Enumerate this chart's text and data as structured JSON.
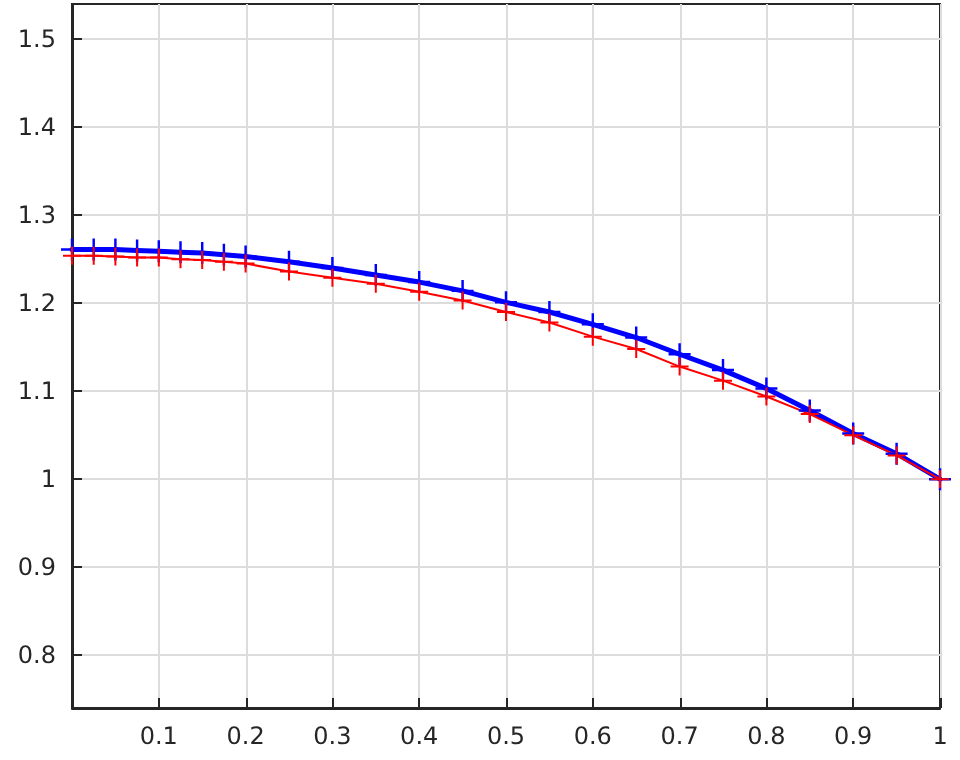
{
  "chart_data": {
    "type": "line",
    "x": [
      0,
      0.025,
      0.05,
      0.075,
      0.1,
      0.125,
      0.15,
      0.175,
      0.2,
      0.25,
      0.3,
      0.35,
      0.4,
      0.45,
      0.5,
      0.55,
      0.6,
      0.65,
      0.7,
      0.75,
      0.8,
      0.85,
      0.9,
      0.95,
      1
    ],
    "series": [
      {
        "color": "#0000ff",
        "values": [
          1.261,
          1.261,
          1.261,
          1.26,
          1.259,
          1.258,
          1.257,
          1.255,
          1.253,
          1.247,
          1.24,
          1.232,
          1.224,
          1.214,
          1.201,
          1.19,
          1.176,
          1.161,
          1.142,
          1.124,
          1.103,
          1.078,
          1.052,
          1.029,
          1.0
        ]
      },
      {
        "color": "#ff0000",
        "values": [
          1.254,
          1.254,
          1.253,
          1.252,
          1.252,
          1.25,
          1.249,
          1.247,
          1.245,
          1.236,
          1.229,
          1.222,
          1.213,
          1.203,
          1.19,
          1.178,
          1.162,
          1.148,
          1.128,
          1.112,
          1.094,
          1.074,
          1.05,
          1.027,
          1.0
        ]
      }
    ],
    "xlim": [
      0,
      1
    ],
    "xticks": [
      {
        "value": 0,
        "label": null
      },
      0.1,
      0.2,
      0.3,
      0.4,
      0.5,
      0.6,
      0.7,
      0.8,
      0.9,
      1
    ],
    "ylim": [
      0.74,
      1.54
    ],
    "yticks": [
      0.8,
      0.9,
      1,
      1.1,
      1.2,
      1.3,
      1.4,
      1.5
    ],
    "grid": true,
    "marker": "cross",
    "line_style": "solid"
  }
}
